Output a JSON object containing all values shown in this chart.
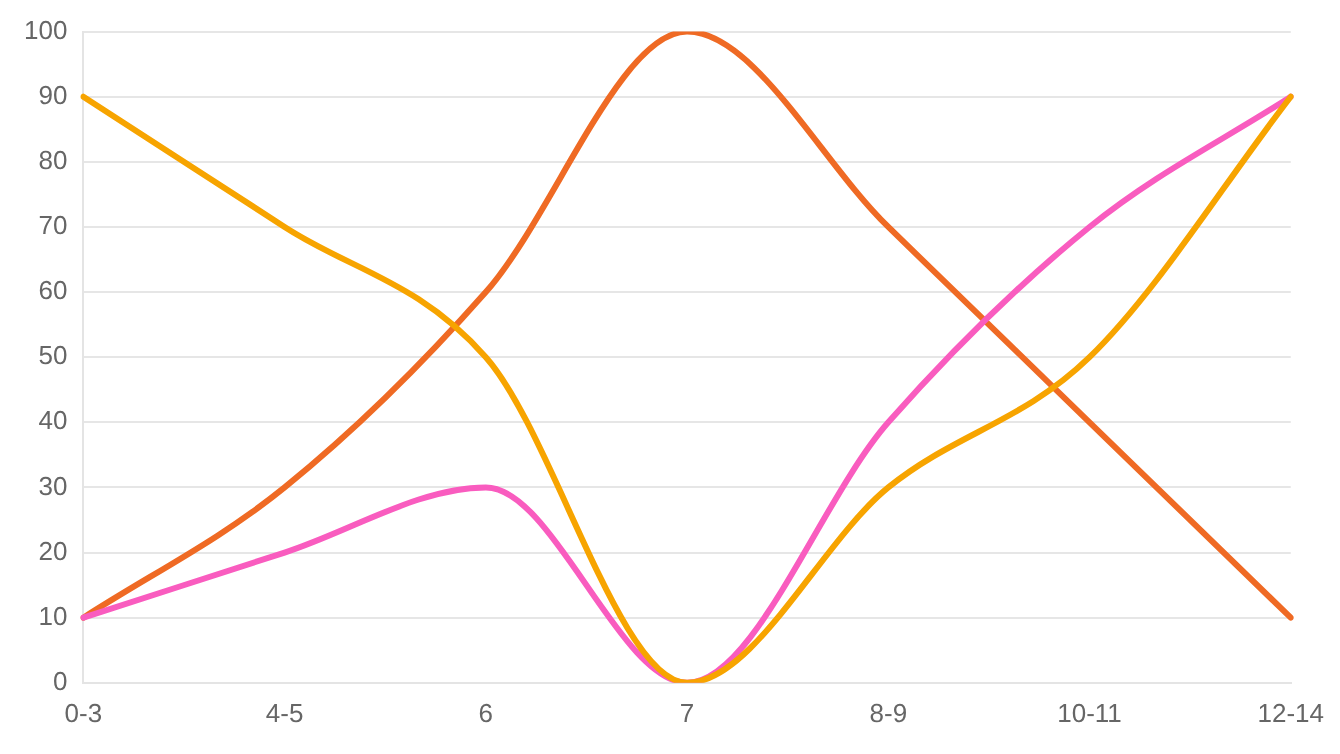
{
  "chart_data": {
    "type": "line",
    "categories": [
      "0-3",
      "4-5",
      "6",
      "7",
      "8-9",
      "10-11",
      "12-14"
    ],
    "series": [
      {
        "color": "#ef6a24",
        "values": [
          10,
          30,
          60,
          100,
          70,
          40,
          10
        ]
      },
      {
        "color": "#f95cbf",
        "values": [
          10,
          20,
          30,
          0,
          40,
          70,
          90
        ]
      },
      {
        "color": "#f7a400",
        "values": [
          90,
          70,
          50,
          0,
          30,
          50,
          90
        ]
      }
    ],
    "ylim": [
      0,
      100
    ],
    "yticks": [
      0,
      10,
      20,
      30,
      40,
      50,
      60,
      70,
      80,
      90,
      100
    ],
    "grid": "y",
    "legend": false,
    "marker": "none",
    "line_style": "solid"
  }
}
